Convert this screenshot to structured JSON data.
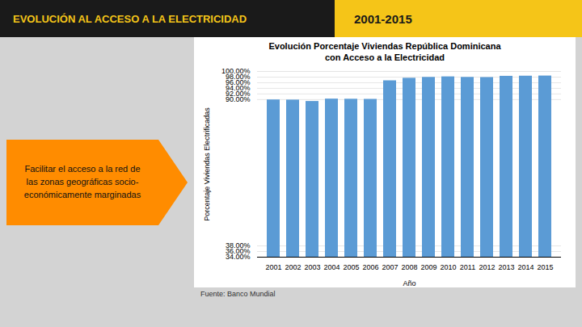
{
  "chart_data": {
    "type": "bar",
    "title": "Evolución Porcentaje Viviendas República Dominicana",
    "subtitle": "con Acceso a la Electricidad",
    "xlabel": "Año",
    "ylabel": "Porcentaje Viviendas Electrificadas",
    "categories": [
      "2001",
      "2002",
      "2003",
      "2004",
      "2005",
      "2006",
      "2007",
      "2008",
      "2009",
      "2010",
      "2011",
      "2012",
      "2013",
      "2014",
      "2015"
    ],
    "values": [
      89.9,
      89.85,
      89.35,
      90.2,
      90.15,
      90.1,
      96.7,
      97.6,
      97.9,
      98.1,
      97.9,
      97.85,
      98.3,
      98.35,
      98.4
    ],
    "color": "#5B9BD5",
    "ylim": [
      34.0,
      100.0
    ],
    "yticks": [
      {
        "value": 34.0,
        "label": "34.00%"
      },
      {
        "value": 36.0,
        "label": "36.00%"
      },
      {
        "value": 38.0,
        "label": "38.00%"
      },
      {
        "value": 90.0,
        "label": "90.00%"
      },
      {
        "value": 92.0,
        "label": "92.00%"
      },
      {
        "value": 94.0,
        "label": "94.00%"
      },
      {
        "value": 96.0,
        "label": "96.00%"
      },
      {
        "value": 98.0,
        "label": "98.00%"
      },
      {
        "value": 100.0,
        "label": "100.00%"
      }
    ],
    "grid": true,
    "annotations": [
      "EVOLUCIÓN AL ACCESO A LA ELECTRICIDAD",
      "2001-2015",
      "Facilitar el acceso a la red de",
      "las zonas geográficas socio-",
      "económicamente marginadas",
      "Fuente: Banco Mundial"
    ]
  }
}
